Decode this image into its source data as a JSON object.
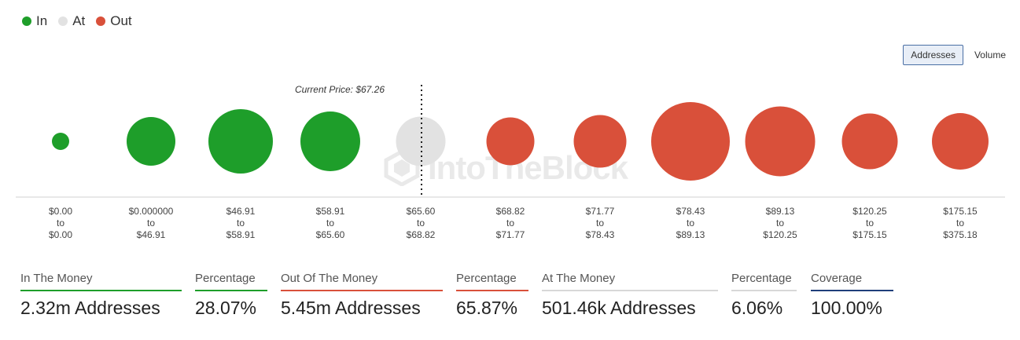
{
  "legend": [
    {
      "label": "In",
      "color": "#1e9e2a"
    },
    {
      "label": "At",
      "color": "#e2e2e2"
    },
    {
      "label": "Out",
      "color": "#d9503a"
    }
  ],
  "toggle": {
    "addresses": "Addresses",
    "volume": "Volume",
    "active": "addresses"
  },
  "watermark": "IntoTheBlock",
  "chart_data": {
    "type": "bubble",
    "current_price_label": "Current Price: $67.26",
    "ranges": [
      {
        "from": "$0.00",
        "to_word": "to",
        "to": "$0.00",
        "status": "in",
        "size": 0.22
      },
      {
        "from": "$0.000000",
        "to_word": "to",
        "to": "$46.91",
        "status": "in",
        "size": 0.62
      },
      {
        "from": "$46.91",
        "to_word": "to",
        "to": "$58.91",
        "status": "in",
        "size": 0.82
      },
      {
        "from": "$58.91",
        "to_word": "to",
        "to": "$65.60",
        "status": "in",
        "size": 0.76
      },
      {
        "from": "$65.60",
        "to_word": "to",
        "to": "$68.82",
        "status": "at",
        "size": 0.63
      },
      {
        "from": "$68.82",
        "to_word": "to",
        "to": "$71.77",
        "status": "out",
        "size": 0.61
      },
      {
        "from": "$71.77",
        "to_word": "to",
        "to": "$78.43",
        "status": "out",
        "size": 0.67
      },
      {
        "from": "$78.43",
        "to_word": "to",
        "to": "$89.13",
        "status": "out",
        "size": 1.0
      },
      {
        "from": "$89.13",
        "to_word": "to",
        "to": "$120.25",
        "status": "out",
        "size": 0.89
      },
      {
        "from": "$120.25",
        "to_word": "to",
        "to": "$175.15",
        "status": "out",
        "size": 0.71
      },
      {
        "from": "$175.15",
        "to_word": "to",
        "to": "$375.18",
        "status": "out",
        "size": 0.72
      }
    ]
  },
  "stats": [
    {
      "label": "In The Money",
      "value": "2.32m Addresses",
      "color": "#1e9e2a"
    },
    {
      "label": "Percentage",
      "value": "28.07%",
      "color": "#1e9e2a"
    },
    {
      "label": "Out Of The Money",
      "value": "5.45m Addresses",
      "color": "#d9503a"
    },
    {
      "label": "Percentage",
      "value": "65.87%",
      "color": "#d9503a"
    },
    {
      "label": "At The Money",
      "value": "501.46k Addresses",
      "color": "#d8d8d8"
    },
    {
      "label": "Percentage",
      "value": "6.06%",
      "color": "#d8d8d8"
    },
    {
      "label": "Coverage",
      "value": "100.00%",
      "color": "#1f3f7a"
    }
  ]
}
